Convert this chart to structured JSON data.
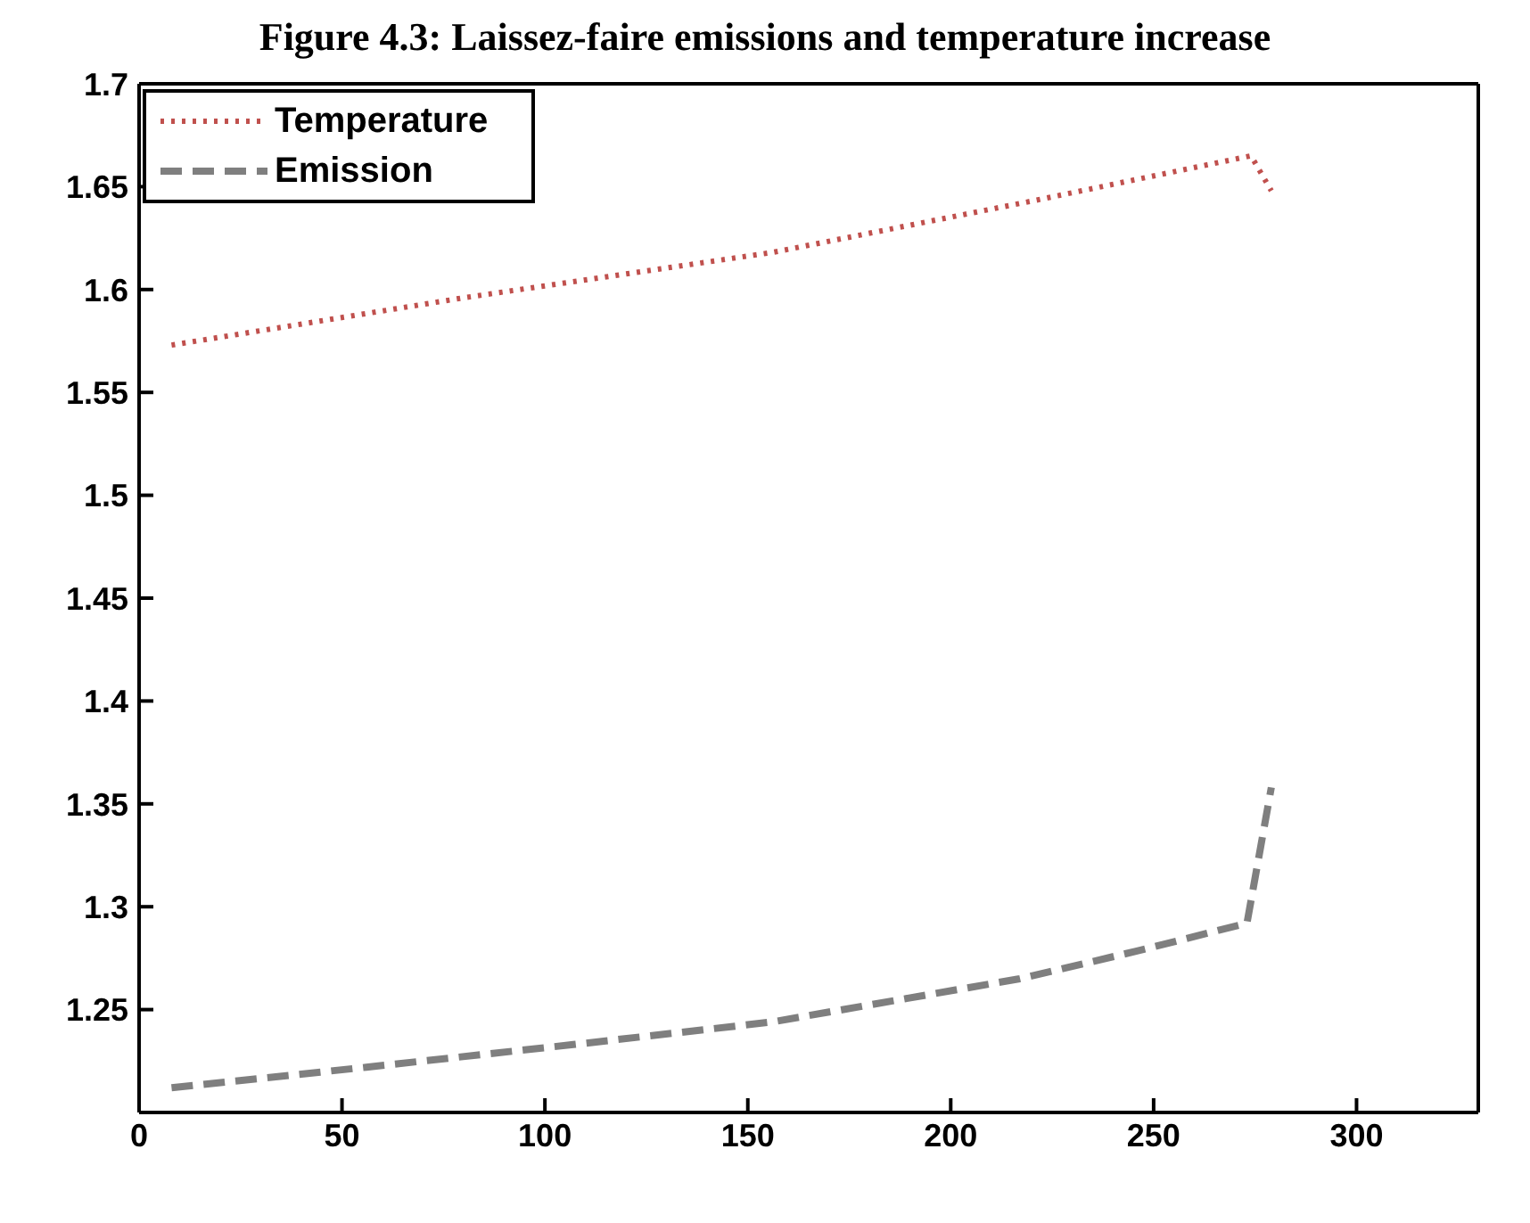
{
  "chart_data": {
    "type": "line",
    "title": "Figure 4.3: Laissez-faire emissions and temperature increase",
    "xlim": [
      0,
      330
    ],
    "xticks": [
      0,
      50,
      100,
      150,
      200,
      250,
      300
    ],
    "ylim": [
      1.2,
      1.7
    ],
    "yticks": [
      1.25,
      1.3,
      1.35,
      1.4,
      1.45,
      1.5,
      1.55,
      1.6,
      1.65,
      1.7
    ],
    "legend": "top left",
    "grid": false,
    "series": [
      {
        "name": "Temperature",
        "color": "#c0504d",
        "line_style": "dotted",
        "x": [
          8,
          80,
          156,
          220,
          274,
          279
        ],
        "values": [
          1.573,
          1.596,
          1.618,
          1.643,
          1.665,
          1.648
        ]
      },
      {
        "name": "Emission",
        "color": "#7f7f7f",
        "line_style": "dashed",
        "x": [
          8,
          56,
          107,
          156,
          217,
          247,
          273,
          279
        ],
        "values": [
          1.212,
          1.222,
          1.233,
          1.244,
          1.265,
          1.279,
          1.292,
          1.358
        ]
      }
    ]
  }
}
